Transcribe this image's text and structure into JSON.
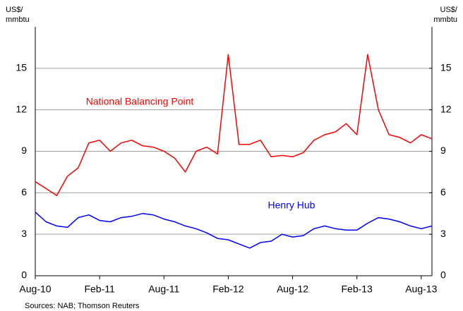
{
  "chart_data": {
    "type": "line",
    "y_label": [
      "US$/",
      "mmbtu"
    ],
    "y2_label": [
      "US$/",
      "mmbtu"
    ],
    "source": "Sources: NAB; Thomson Reuters",
    "annotations": [
      {
        "text": "National Balancing Point"
      },
      {
        "text": "Henry Hub"
      }
    ],
    "categories": [
      "Aug-10",
      null,
      null,
      null,
      null,
      null,
      "Feb-11",
      null,
      null,
      null,
      null,
      null,
      "Aug-11",
      null,
      null,
      null,
      null,
      null,
      "Feb-12",
      null,
      null,
      null,
      null,
      null,
      "Aug-12",
      null,
      null,
      null,
      null,
      null,
      "Feb-13",
      null,
      null,
      null,
      null,
      null,
      "Aug-13",
      null
    ],
    "series": [
      {
        "name": "National Balancing Point",
        "color": "#ff0000",
        "values": [
          6.8,
          6.3,
          5.8,
          7.2,
          7.8,
          9.6,
          9.8,
          9.0,
          9.6,
          9.8,
          9.4,
          9.3,
          9.0,
          8.5,
          7.5,
          9.0,
          9.3,
          8.8,
          16.0,
          9.5,
          9.5,
          9.8,
          8.6,
          8.7,
          8.6,
          8.9,
          9.8,
          10.2,
          10.4,
          11.0,
          10.2,
          16.0,
          12.0,
          10.2,
          10.0,
          9.6,
          10.2,
          9.9
        ]
      },
      {
        "name": "Henry Hub",
        "color": "#0000ff",
        "values": [
          4.6,
          3.9,
          3.6,
          3.5,
          4.2,
          4.4,
          4.0,
          3.9,
          4.2,
          4.3,
          4.5,
          4.4,
          4.1,
          3.9,
          3.6,
          3.4,
          3.1,
          2.7,
          2.6,
          2.3,
          2.0,
          2.4,
          2.5,
          3.0,
          2.8,
          2.9,
          3.4,
          3.6,
          3.4,
          3.3,
          3.3,
          3.8,
          4.2,
          4.1,
          3.9,
          3.6,
          3.4,
          3.6
        ]
      }
    ],
    "ylim": [
      0,
      18
    ],
    "yticks": [
      0,
      3,
      6,
      9,
      12,
      15
    ],
    "y2lim": [
      0,
      18
    ],
    "y2ticks": [
      0,
      3,
      6,
      9,
      12,
      15
    ],
    "grid": true
  }
}
